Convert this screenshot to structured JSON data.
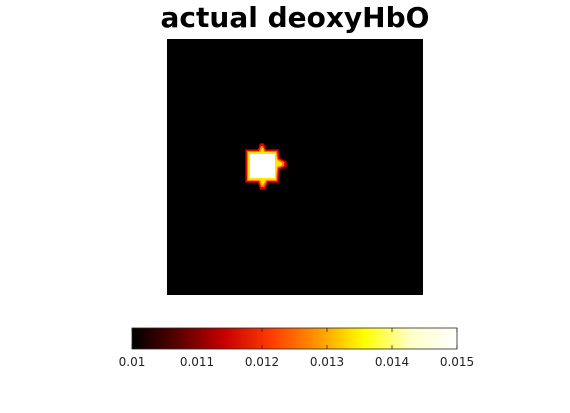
{
  "chart_data": {
    "type": "heatmap",
    "title": "actual deoxyHbO",
    "xlabel": "",
    "ylabel": "",
    "colormap": "hot",
    "background_value": 0.01,
    "blob": {
      "description_value": 0.015,
      "core_value": 0.015,
      "edge_values": [
        0.014,
        0.013,
        0.012
      ]
    },
    "colorbar": {
      "range": [
        0.01,
        0.015
      ],
      "ticks": [
        0.01,
        0.011,
        0.012,
        0.013,
        0.014,
        0.015
      ],
      "tick_labels": [
        "0.01",
        "0.011",
        "0.012",
        "0.013",
        "0.014",
        "0.015"
      ],
      "orientation": "horizontal"
    }
  },
  "colors": {
    "background": "#000000",
    "colormap_stops": [
      "#000000",
      "#5a0000",
      "#c80000",
      "#ff3c00",
      "#ff9600",
      "#ffff00",
      "#ffffc8",
      "#ffffff"
    ]
  }
}
